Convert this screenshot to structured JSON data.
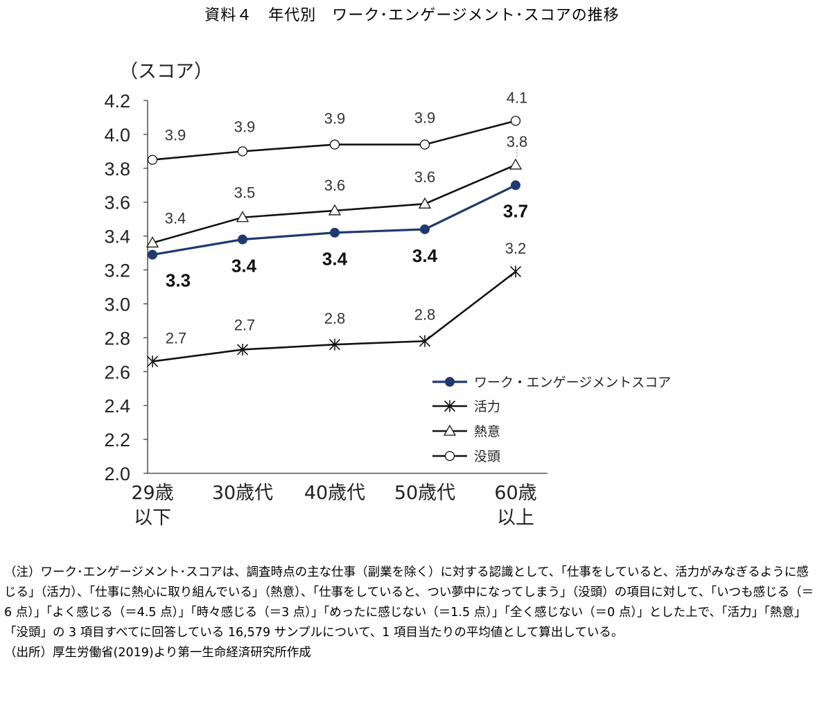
{
  "title": "資料４　年代別　ワーク･エンゲージメント･スコアの推移",
  "notes": {
    "note": "（注）ワーク･エンゲージメント･スコアは、調査時点の主な仕事（副業を除く）に対する認識として、「仕事をしていると、活力がみなぎるように感じる」（活力）、「仕事に熱心に取り組んでいる」（熱意）、「仕事をしていると、つい夢中になってしまう」（没頭）の項目に対して、「いつも感じる（＝6 点）」「よく感じる（＝4.5 点）」「時々感じる（＝3 点）」「めったに感じない（＝1.5 点）」「全く感じない（＝0 点）」とした上で、「活力」「熱意」「没頭」の 3 項目すべてに回答している 16,579 サンプルについて、1 項目当たりの平均値として算出している。",
    "source": "（出所）厚生労働省(2019)より第一生命経済研究所作成"
  },
  "chart_data": {
    "type": "line",
    "ylabel": "（スコア）",
    "ylim": [
      2.0,
      4.2
    ],
    "yticks": [
      "2.0",
      "2.2",
      "2.4",
      "2.6",
      "2.8",
      "3.0",
      "3.2",
      "3.4",
      "3.6",
      "3.8",
      "4.0",
      "4.2"
    ],
    "categories": [
      [
        "29歳",
        "以下"
      ],
      [
        "30歳代"
      ],
      [
        "40歳代"
      ],
      [
        "50歳代"
      ],
      [
        "60歳",
        "以上"
      ]
    ],
    "legend_position": "bottom-right",
    "grid": false,
    "series": [
      {
        "name": "ワーク・エンゲージメントスコア",
        "values": [
          3.29,
          3.38,
          3.42,
          3.44,
          3.7
        ],
        "labels": [
          "3.3",
          "3.4",
          "3.4",
          "3.4",
          "3.7"
        ],
        "marker": "filled-circle",
        "color": "#1f3a6e"
      },
      {
        "name": "活力",
        "values": [
          2.66,
          2.73,
          2.76,
          2.78,
          3.19
        ],
        "labels": [
          "2.7",
          "2.7",
          "2.8",
          "2.8",
          "3.2"
        ],
        "marker": "asterisk",
        "color": "#111111"
      },
      {
        "name": "熱意",
        "values": [
          3.36,
          3.51,
          3.55,
          3.59,
          3.82
        ],
        "labels": [
          "3.4",
          "3.5",
          "3.6",
          "3.6",
          "3.8"
        ],
        "marker": "open-triangle",
        "color": "#111111"
      },
      {
        "name": "没頭",
        "values": [
          3.85,
          3.9,
          3.94,
          3.94,
          4.08
        ],
        "labels": [
          "3.9",
          "3.9",
          "3.9",
          "3.9",
          "4.1"
        ],
        "marker": "open-circle",
        "color": "#111111"
      }
    ]
  }
}
